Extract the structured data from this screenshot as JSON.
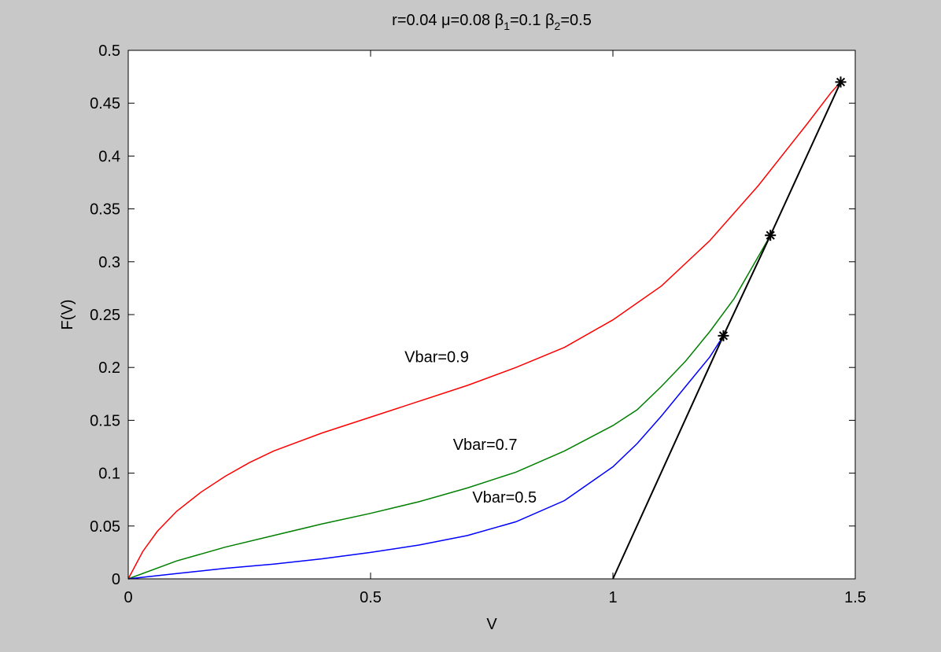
{
  "chart_data": {
    "type": "line",
    "title": {
      "prefix": "r=0.04 μ=0.08 β",
      "sub1": "1",
      "mid": "=0.1 β",
      "sub2": "2",
      "suffix": "=0.5"
    },
    "xlabel": "V",
    "ylabel": "F(V)",
    "xlim": [
      0,
      1.5
    ],
    "ylim": [
      0,
      0.5
    ],
    "grid": false,
    "xticks": [
      0,
      0.5,
      1,
      1.5
    ],
    "xtick_labels": [
      "0",
      "0.5",
      "1",
      "1.5"
    ],
    "yticks": [
      0,
      0.05,
      0.1,
      0.15,
      0.2,
      0.25,
      0.3,
      0.35,
      0.4,
      0.45,
      0.5
    ],
    "ytick_labels": [
      "0",
      "0.05",
      "0.1",
      "0.15",
      "0.2",
      "0.25",
      "0.3",
      "0.35",
      "0.4",
      "0.45",
      "0.5"
    ],
    "series": [
      {
        "color": "#ff0000",
        "points": [
          [
            0,
            0
          ],
          [
            0.03,
            0.026
          ],
          [
            0.06,
            0.045
          ],
          [
            0.1,
            0.064
          ],
          [
            0.15,
            0.082
          ],
          [
            0.2,
            0.097
          ],
          [
            0.25,
            0.11
          ],
          [
            0.3,
            0.121
          ],
          [
            0.4,
            0.138
          ],
          [
            0.5,
            0.153
          ],
          [
            0.6,
            0.168
          ],
          [
            0.7,
            0.183
          ],
          [
            0.8,
            0.2
          ],
          [
            0.9,
            0.219
          ],
          [
            1.0,
            0.245
          ],
          [
            1.1,
            0.277
          ],
          [
            1.2,
            0.32
          ],
          [
            1.3,
            0.372
          ],
          [
            1.4,
            0.43
          ],
          [
            1.45,
            0.46
          ],
          [
            1.47,
            0.47
          ]
        ]
      },
      {
        "color": "#008000",
        "points": [
          [
            0,
            0
          ],
          [
            0.1,
            0.017
          ],
          [
            0.2,
            0.03
          ],
          [
            0.3,
            0.041
          ],
          [
            0.4,
            0.052
          ],
          [
            0.5,
            0.062
          ],
          [
            0.6,
            0.073
          ],
          [
            0.7,
            0.086
          ],
          [
            0.8,
            0.101
          ],
          [
            0.9,
            0.121
          ],
          [
            1.0,
            0.145
          ],
          [
            1.05,
            0.16
          ],
          [
            1.1,
            0.182
          ],
          [
            1.15,
            0.206
          ],
          [
            1.2,
            0.234
          ],
          [
            1.25,
            0.265
          ],
          [
            1.3,
            0.305
          ],
          [
            1.325,
            0.325
          ]
        ]
      },
      {
        "color": "#0000ff",
        "points": [
          [
            0,
            0
          ],
          [
            0.1,
            0.005
          ],
          [
            0.2,
            0.01
          ],
          [
            0.3,
            0.014
          ],
          [
            0.4,
            0.019
          ],
          [
            0.5,
            0.025
          ],
          [
            0.6,
            0.032
          ],
          [
            0.7,
            0.041
          ],
          [
            0.8,
            0.054
          ],
          [
            0.9,
            0.074
          ],
          [
            1.0,
            0.106
          ],
          [
            1.05,
            0.128
          ],
          [
            1.1,
            0.154
          ],
          [
            1.15,
            0.182
          ],
          [
            1.2,
            0.21
          ],
          [
            1.228,
            0.23
          ]
        ]
      },
      {
        "color": "#000000",
        "points": [
          [
            1.0,
            0
          ],
          [
            1.228,
            0.23
          ],
          [
            1.325,
            0.325
          ],
          [
            1.47,
            0.47
          ]
        ]
      }
    ],
    "markers": [
      [
        1.228,
        0.23
      ],
      [
        1.325,
        0.325
      ],
      [
        1.47,
        0.47
      ]
    ],
    "annotations": [
      {
        "text": "Vbar=0.9",
        "x": 0.57,
        "y": 0.205
      },
      {
        "text": "Vbar=0.7",
        "x": 0.67,
        "y": 0.122
      },
      {
        "text": "Vbar=0.5",
        "x": 0.71,
        "y": 0.072
      }
    ]
  }
}
